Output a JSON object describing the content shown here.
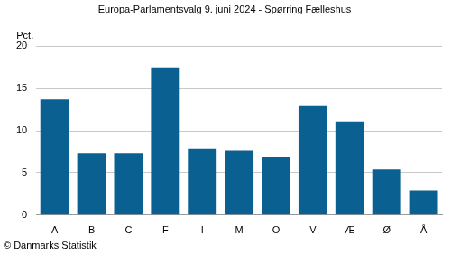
{
  "chart_data": {
    "type": "bar",
    "title": "Europa-Parlamentsvalg 9. juni 2024 - Spørring Fælleshus",
    "ylabel": "Pct.",
    "annotations": [
      "© Danmarks Statistik"
    ],
    "categories": [
      "A",
      "B",
      "C",
      "F",
      "I",
      "M",
      "O",
      "V",
      "Æ",
      "Ø",
      "Å"
    ],
    "values": [
      13.7,
      7.3,
      7.3,
      17.5,
      7.9,
      7.6,
      6.9,
      12.9,
      11.1,
      5.4,
      2.9
    ],
    "color": "#0a6191",
    "ylim": [
      0,
      20
    ],
    "yticks": [
      0,
      5,
      10,
      15,
      20
    ],
    "grid": true
  }
}
